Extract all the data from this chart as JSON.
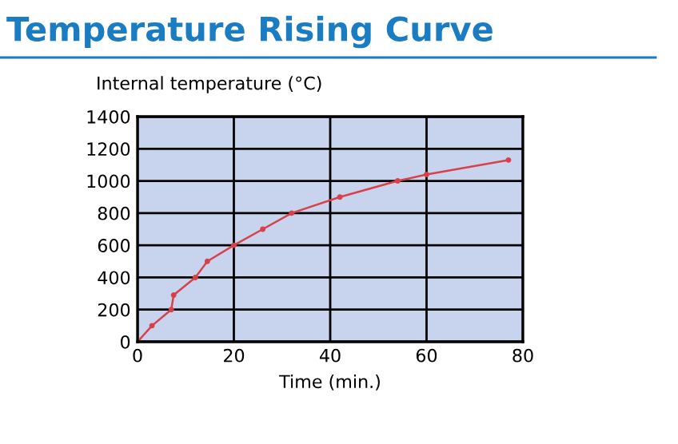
{
  "chart_data": {
    "type": "line",
    "title": "Temperature Rising Curve",
    "ylabel": "Internal temperature (°C)",
    "xlabel": "Time (min.)",
    "x": [
      0,
      3,
      7,
      7.5,
      12,
      14.5,
      20,
      26,
      32,
      42,
      54,
      60,
      77
    ],
    "series": [
      {
        "color": "#d8404a",
        "values": [
          0,
          100,
          200,
          290,
          400,
          500,
          600,
          700,
          800,
          900,
          1000,
          1040,
          1130
        ]
      }
    ],
    "xlim": [
      0,
      80
    ],
    "xticks": [
      0,
      20,
      40,
      60,
      80
    ],
    "ylim": [
      0,
      1400
    ],
    "yticks": [
      0,
      200,
      400,
      600,
      800,
      1000,
      1200,
      1400
    ],
    "grid": true,
    "marker": "circle",
    "line_style": "solid",
    "legend": false
  }
}
